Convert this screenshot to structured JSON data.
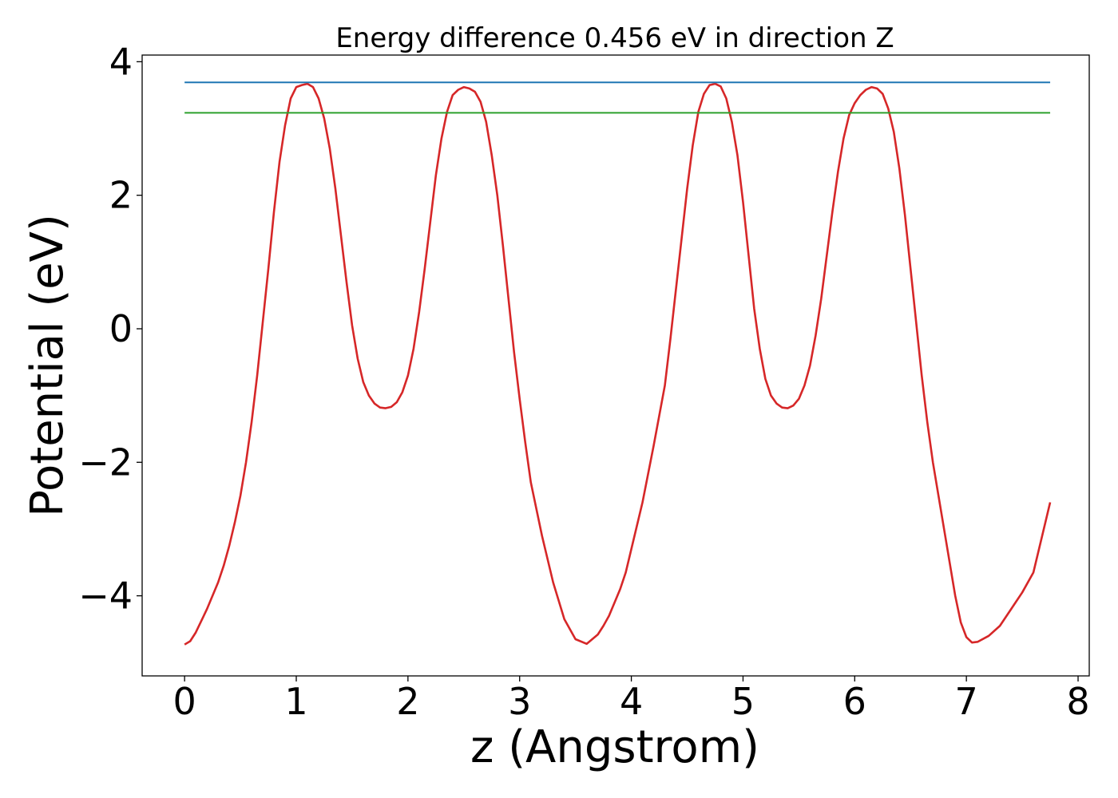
{
  "chart_data": {
    "type": "line",
    "title": "Energy difference 0.456 eV in direction Z",
    "xlabel": "z (Angstrom)",
    "ylabel": "Potential (eV)",
    "xlim": [
      -0.38,
      8.1
    ],
    "ylim": [
      -5.2,
      4.1
    ],
    "xticks": [
      0,
      1,
      2,
      3,
      4,
      5,
      6,
      7,
      8
    ],
    "xtick_labels": [
      "0",
      "1",
      "2",
      "3",
      "4",
      "5",
      "6",
      "7",
      "8"
    ],
    "yticks": [
      4,
      2,
      0,
      -2,
      -4
    ],
    "ytick_labels": [
      "4",
      "2",
      "0",
      "−2",
      "−4"
    ],
    "grid": false,
    "series": [
      {
        "color": "#d62728",
        "x": [
          0.0,
          0.05,
          0.1,
          0.2,
          0.3,
          0.35,
          0.4,
          0.45,
          0.5,
          0.55,
          0.6,
          0.65,
          0.7,
          0.75,
          0.8,
          0.85,
          0.9,
          0.95,
          1.0,
          1.05,
          1.1,
          1.15,
          1.2,
          1.25,
          1.3,
          1.35,
          1.4,
          1.45,
          1.5,
          1.55,
          1.6,
          1.65,
          1.7,
          1.75,
          1.8,
          1.85,
          1.9,
          1.95,
          2.0,
          2.05,
          2.1,
          2.15,
          2.2,
          2.25,
          2.3,
          2.35,
          2.4,
          2.45,
          2.5,
          2.55,
          2.6,
          2.65,
          2.7,
          2.75,
          2.8,
          2.85,
          2.9,
          2.95,
          3.0,
          3.05,
          3.1,
          3.2,
          3.3,
          3.4,
          3.5,
          3.6,
          3.7,
          3.75,
          3.8,
          3.85,
          3.9,
          3.95,
          4.0,
          4.1,
          4.2,
          4.3,
          4.35,
          4.4,
          4.45,
          4.5,
          4.55,
          4.6,
          4.65,
          4.7,
          4.75,
          4.8,
          4.85,
          4.9,
          4.95,
          5.0,
          5.05,
          5.1,
          5.15,
          5.2,
          5.25,
          5.3,
          5.35,
          5.4,
          5.45,
          5.5,
          5.55,
          5.6,
          5.65,
          5.7,
          5.75,
          5.8,
          5.85,
          5.9,
          5.95,
          6.0,
          6.05,
          6.1,
          6.15,
          6.2,
          6.25,
          6.3,
          6.35,
          6.4,
          6.45,
          6.5,
          6.55,
          6.6,
          6.65,
          6.7,
          6.75,
          6.8,
          6.85,
          6.9,
          6.95,
          7.0,
          7.05,
          7.1,
          7.2,
          7.3,
          7.4,
          7.5,
          7.6,
          7.65,
          7.7,
          7.75
        ],
        "y": [
          -4.73,
          -4.68,
          -4.55,
          -4.2,
          -3.8,
          -3.55,
          -3.25,
          -2.9,
          -2.5,
          -2.0,
          -1.4,
          -0.7,
          0.1,
          0.9,
          1.75,
          2.5,
          3.05,
          3.45,
          3.62,
          3.65,
          3.67,
          3.62,
          3.45,
          3.15,
          2.7,
          2.1,
          1.4,
          0.7,
          0.05,
          -0.45,
          -0.8,
          -1.0,
          -1.12,
          -1.18,
          -1.19,
          -1.17,
          -1.1,
          -0.95,
          -0.7,
          -0.3,
          0.25,
          0.9,
          1.6,
          2.3,
          2.85,
          3.25,
          3.5,
          3.58,
          3.62,
          3.6,
          3.55,
          3.4,
          3.1,
          2.6,
          2.0,
          1.25,
          0.45,
          -0.35,
          -1.05,
          -1.7,
          -2.3,
          -3.1,
          -3.8,
          -4.35,
          -4.65,
          -4.72,
          -4.58,
          -4.45,
          -4.3,
          -4.1,
          -3.9,
          -3.65,
          -3.3,
          -2.6,
          -1.75,
          -0.85,
          -0.15,
          0.6,
          1.35,
          2.1,
          2.75,
          3.25,
          3.52,
          3.65,
          3.67,
          3.63,
          3.45,
          3.1,
          2.6,
          1.9,
          1.1,
          0.3,
          -0.3,
          -0.75,
          -1.0,
          -1.12,
          -1.18,
          -1.19,
          -1.15,
          -1.05,
          -0.85,
          -0.55,
          -0.1,
          0.45,
          1.1,
          1.75,
          2.35,
          2.85,
          3.2,
          3.38,
          3.5,
          3.58,
          3.62,
          3.6,
          3.52,
          3.3,
          2.95,
          2.4,
          1.7,
          0.9,
          0.1,
          -0.7,
          -1.4,
          -2.0,
          -2.5,
          -3.0,
          -3.5,
          -4.0,
          -4.4,
          -4.62,
          -4.7,
          -4.69,
          -4.6,
          -4.45,
          -4.2,
          -3.95,
          -3.65,
          -3.3,
          -2.95,
          -2.6
        ]
      },
      {
        "color": "#1f77b4",
        "x": [
          0.0,
          7.75
        ],
        "y": [
          3.69,
          3.69
        ]
      },
      {
        "color": "#2ca02c",
        "x": [
          0.0,
          7.75
        ],
        "y": [
          3.235,
          3.235
        ]
      }
    ]
  }
}
